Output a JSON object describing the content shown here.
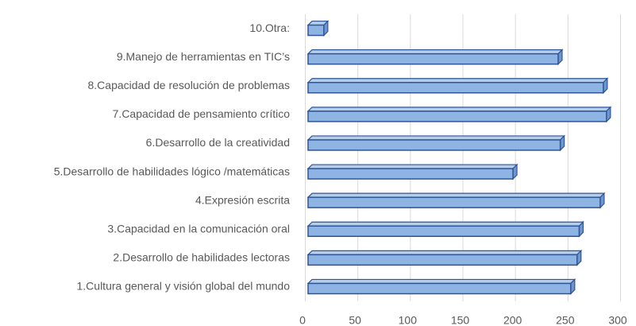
{
  "chart_data": {
    "type": "bar",
    "orientation": "horizontal",
    "three_d": true,
    "categories": [
      "1.Cultura general y visión global del mundo",
      "2.Desarrollo de habilidades lectoras",
      "3.Capacidad en la comunicación oral",
      "4.Expresión escrita",
      "5.Desarrollo de habilidades lógico /matemáticas ",
      "6.Desarrollo de la creatividad",
      "7.Capacidad de pensamiento crítico",
      "8.Capacidad de resolución de problemas",
      "9.Manejo de herramientas en TIC’s",
      "10.Otra:"
    ],
    "values": [
      250,
      256,
      258,
      278,
      195,
      240,
      284,
      281,
      238,
      15
    ],
    "color": "#8eb4e3",
    "edge_color": "#2f5597",
    "xlim": [
      0,
      300
    ],
    "xticks": [
      0,
      50,
      100,
      150,
      200,
      250,
      300
    ],
    "grid": true
  }
}
